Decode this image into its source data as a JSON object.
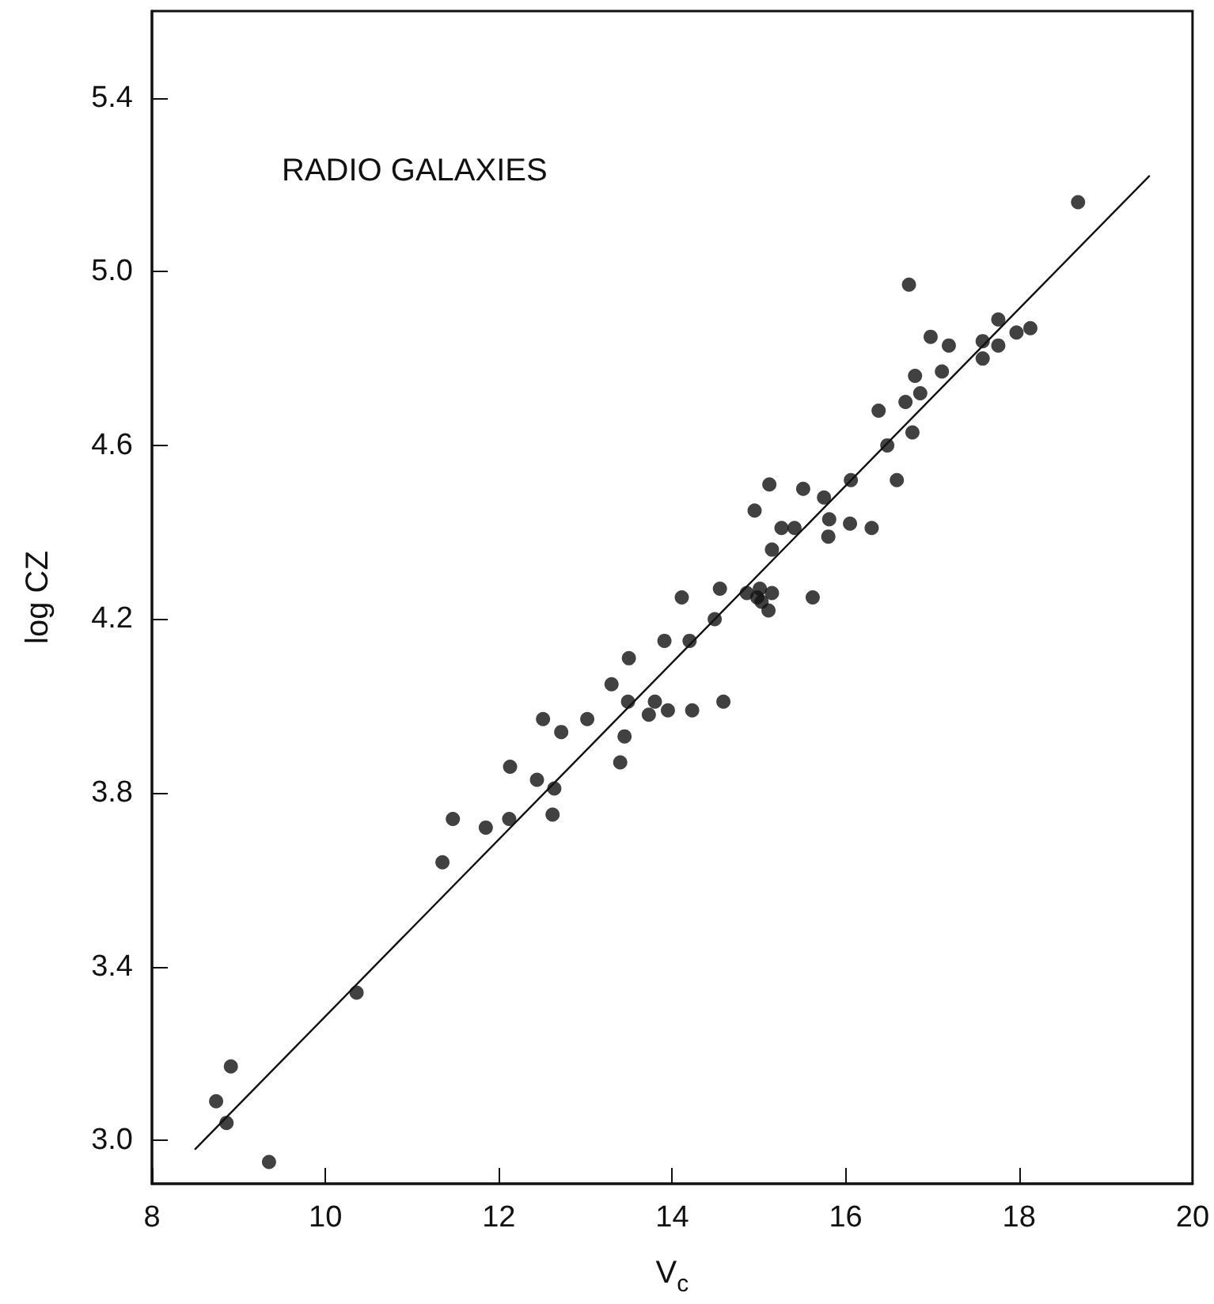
{
  "chart_data": {
    "type": "scatter",
    "xlabel": "V$_{c}$",
    "ylabel": "log CZ",
    "annotations": [
      "RADIO GALAXIES"
    ],
    "xlim": [
      8,
      20
    ],
    "ylim": [
      2.9,
      5.6
    ],
    "xticks": [
      8,
      10,
      12,
      14,
      16,
      18,
      20
    ],
    "yticks": [
      {
        "value": 3.0,
        "label": "3.0"
      },
      {
        "value": 3.4,
        "label": "3.4"
      },
      {
        "value": 3.8,
        "label": "3.8"
      },
      {
        "value": 4.2,
        "label": "4.2"
      },
      {
        "value": 4.6,
        "label": "4.6"
      },
      {
        "value": 5.0,
        "label": "5.0"
      },
      {
        "value": 5.4,
        "label": "5.4"
      }
    ],
    "grid": false,
    "series": [
      {
        "marker": "circle",
        "color": "#111111",
        "x": [
          8.74,
          8.91,
          8.86,
          9.35,
          10.36,
          11.35,
          11.47,
          11.85,
          12.12,
          12.13,
          12.44,
          12.62,
          12.64,
          12.51,
          12.72,
          13.02,
          13.4,
          13.45,
          13.49,
          13.3,
          13.5,
          13.8,
          13.73,
          13.95,
          14.23,
          14.59,
          13.91,
          14.2,
          14.11,
          14.49,
          14.55,
          14.86,
          15.01,
          15.15,
          14.98,
          15.03,
          15.11,
          15.62,
          15.15,
          14.95,
          15.12,
          15.26,
          15.41,
          15.51,
          15.75,
          15.81,
          15.8,
          16.05,
          16.3,
          16.06,
          16.59,
          16.48,
          16.77,
          16.38,
          16.69,
          16.86,
          16.8,
          17.11,
          16.73,
          16.98,
          17.19,
          17.58,
          17.58,
          17.76,
          17.76,
          17.97,
          18.13,
          18.68
        ],
        "values": [
          3.09,
          3.17,
          3.04,
          2.95,
          3.34,
          3.64,
          3.74,
          3.72,
          3.74,
          3.86,
          3.83,
          3.75,
          3.81,
          3.97,
          3.94,
          3.97,
          3.87,
          3.93,
          4.01,
          4.05,
          4.11,
          4.01,
          3.98,
          3.99,
          3.99,
          4.01,
          4.15,
          4.15,
          4.25,
          4.2,
          4.27,
          4.26,
          4.27,
          4.26,
          4.25,
          4.24,
          4.22,
          4.25,
          4.36,
          4.45,
          4.51,
          4.41,
          4.41,
          4.5,
          4.48,
          4.43,
          4.39,
          4.42,
          4.41,
          4.52,
          4.52,
          4.6,
          4.63,
          4.68,
          4.7,
          4.72,
          4.76,
          4.77,
          4.97,
          4.85,
          4.83,
          4.8,
          4.84,
          4.83,
          4.89,
          4.86,
          4.87,
          5.16
        ]
      },
      {
        "type": "line",
        "marker": "none",
        "color": "#111111",
        "x": [
          8.5,
          19.5
        ],
        "values": [
          2.98,
          5.22
        ]
      }
    ]
  }
}
